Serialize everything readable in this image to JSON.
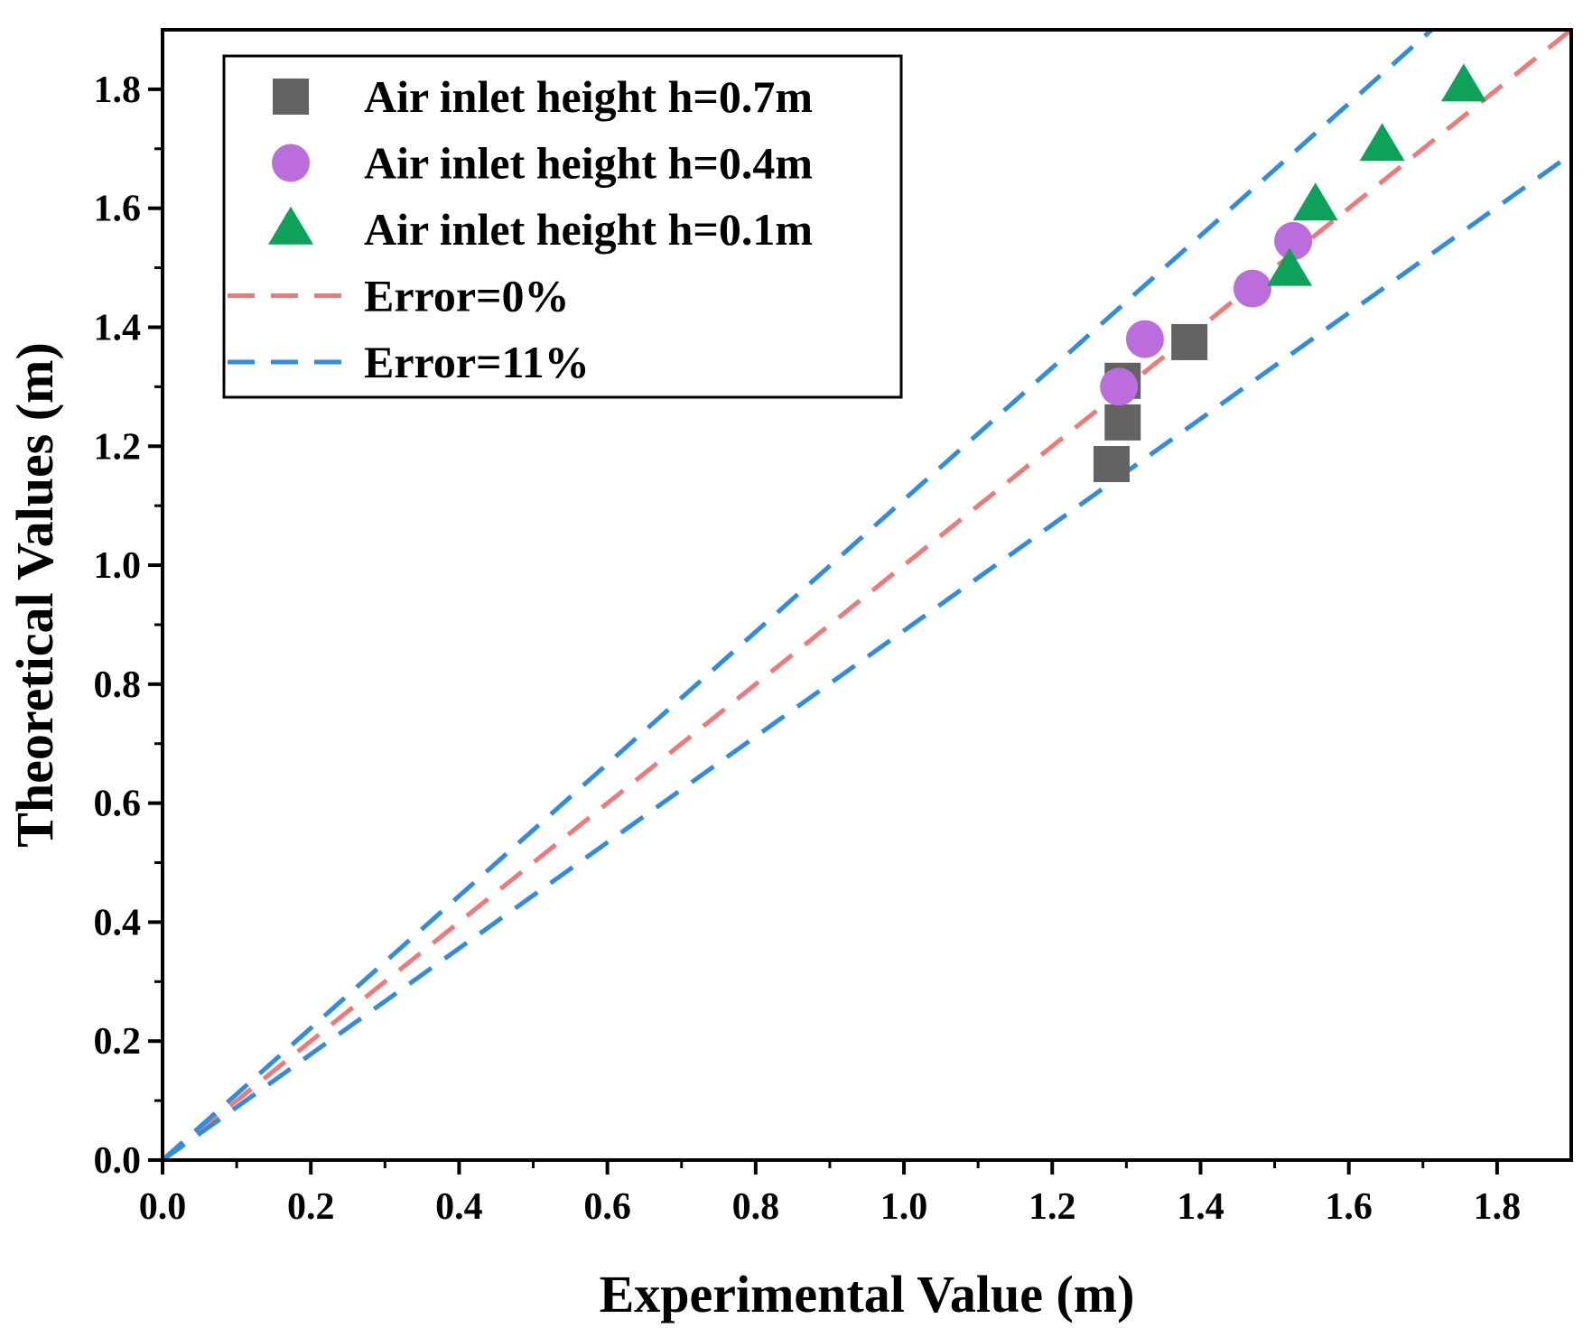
{
  "chart_data": {
    "type": "scatter",
    "title": "",
    "xlabel": "Experimental Value (m)",
    "ylabel": "Theoretical Values (m)",
    "xlim": [
      0,
      1.9
    ],
    "ylim": [
      0,
      1.9
    ],
    "xticks": [
      0.0,
      0.2,
      0.4,
      0.6,
      0.8,
      1.0,
      1.2,
      1.4,
      1.6,
      1.8
    ],
    "yticks": [
      0.0,
      0.2,
      0.4,
      0.6,
      0.8,
      1.0,
      1.2,
      1.4,
      1.6,
      1.8
    ],
    "xtick_labels": [
      "0.0",
      "0.2",
      "0.4",
      "0.6",
      "0.8",
      "1.0",
      "1.2",
      "1.4",
      "1.6",
      "1.8"
    ],
    "ytick_labels": [
      "0.0",
      "0.2",
      "0.4",
      "0.6",
      "0.8",
      "1.0",
      "1.2",
      "1.4",
      "1.6",
      "1.8"
    ],
    "grid": false,
    "legend_position": "top-left",
    "series": [
      {
        "name": "Air inlet height h=0.7m",
        "marker": "square",
        "color": "#636363",
        "points": [
          {
            "x": 1.28,
            "y": 1.17
          },
          {
            "x": 1.295,
            "y": 1.24
          },
          {
            "x": 1.295,
            "y": 1.31
          },
          {
            "x": 1.385,
            "y": 1.375
          }
        ]
      },
      {
        "name": "Air inlet height h=0.4m",
        "marker": "circle",
        "color": "#bb6ddb",
        "points": [
          {
            "x": 1.29,
            "y": 1.3
          },
          {
            "x": 1.325,
            "y": 1.38
          },
          {
            "x": 1.47,
            "y": 1.465
          },
          {
            "x": 1.525,
            "y": 1.545
          }
        ]
      },
      {
        "name": "Air inlet height h=0.1m",
        "marker": "triangle",
        "color": "#0ea15a",
        "points": [
          {
            "x": 1.52,
            "y": 1.495
          },
          {
            "x": 1.555,
            "y": 1.605
          },
          {
            "x": 1.645,
            "y": 1.705
          },
          {
            "x": 1.755,
            "y": 1.805
          }
        ]
      }
    ],
    "reference_lines": [
      {
        "name": "Error=0%",
        "slope": 1.0,
        "color": "#f27878",
        "style": "dashed"
      },
      {
        "name": "Error=11%",
        "slope": 1.11,
        "color": "#2e8de0",
        "style": "dashed"
      },
      {
        "name": "Error=11%",
        "slope": 0.89,
        "color": "#2e8de0",
        "style": "dashed"
      }
    ],
    "legend": [
      {
        "label": "Air inlet height h=0.7m",
        "marker": "square",
        "color": "#636363"
      },
      {
        "label": "Air inlet height h=0.4m",
        "marker": "circle",
        "color": "#bb6ddb"
      },
      {
        "label": "Air inlet height h=0.1m",
        "marker": "triangle",
        "color": "#0ea15a"
      },
      {
        "label": "Error=0%",
        "marker": "dash",
        "color": "#f27878"
      },
      {
        "label": "Error=11%",
        "marker": "dash",
        "color": "#2e8de0"
      }
    ]
  }
}
